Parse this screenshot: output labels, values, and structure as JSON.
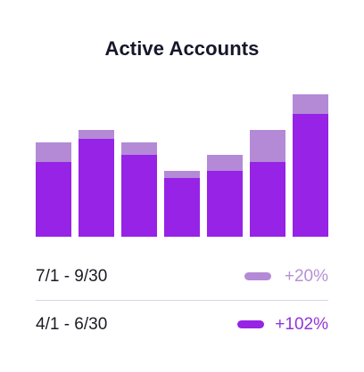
{
  "title": "Active Accounts",
  "colors": {
    "previous": "#b48ad6",
    "current": "#9623e6",
    "title": "#15172a"
  },
  "legend": [
    {
      "label": "7/1 - 9/30",
      "value": "+20%",
      "color": "#b48ad6",
      "text_color": "#b591d4"
    },
    {
      "label": "4/1 - 6/30",
      "value": "+102%",
      "color": "#9623e6",
      "text_color": "#9235d6"
    }
  ],
  "chart_data": {
    "type": "bar",
    "stacked": true,
    "title": "Active Accounts",
    "categories": [
      "",
      "",
      "",
      "",
      "",
      "",
      ""
    ],
    "series": [
      {
        "name": "4/1 - 6/30",
        "values": [
          84,
          110,
          92,
          66,
          74,
          84,
          138
        ]
      },
      {
        "name": "7/1 - 9/30",
        "values": [
          22,
          10,
          14,
          8,
          18,
          36,
          22
        ]
      }
    ],
    "ylim": [
      0,
      160
    ],
    "grid": false,
    "axes_visible": false,
    "legend_position": "bottom"
  }
}
